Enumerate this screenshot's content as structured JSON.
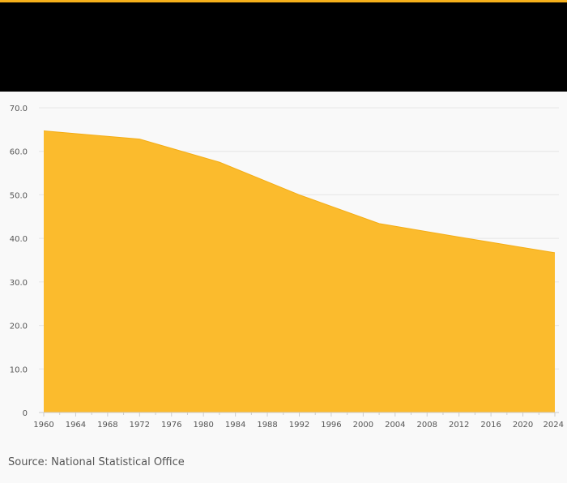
{
  "source_text": "Source: National Statistical Office",
  "colors": {
    "accent": "#f6b01b",
    "header": "#000000",
    "area_fill": "#fbbb2d",
    "area_stroke": "#f4ad15",
    "grid": "#e6e6e6",
    "background": "#f9f9f9"
  },
  "chart_data": {
    "type": "area",
    "title": "",
    "xlabel": "",
    "ylabel": "",
    "x": [
      1960,
      1972,
      1982,
      1992,
      2002,
      2012,
      2024
    ],
    "y": [
      64.7,
      62.8,
      57.5,
      50.0,
      43.4,
      40.3,
      36.7
    ],
    "xlim": [
      1960,
      2024
    ],
    "ylim": [
      0,
      70
    ],
    "x_ticks": [
      "1960",
      "1964",
      "1968",
      "1972",
      "1976",
      "1980",
      "1984",
      "1988",
      "1992",
      "1996",
      "2000",
      "2004",
      "2008",
      "2012",
      "2016",
      "2020",
      "2024"
    ],
    "y_ticks": [
      "0",
      "10.0",
      "20.0",
      "30.0",
      "40.0",
      "50.0",
      "60.0",
      "70.0"
    ],
    "y_tick_values": [
      0,
      10,
      20,
      30,
      40,
      50,
      60,
      70
    ],
    "grid": true,
    "legend": "none"
  }
}
